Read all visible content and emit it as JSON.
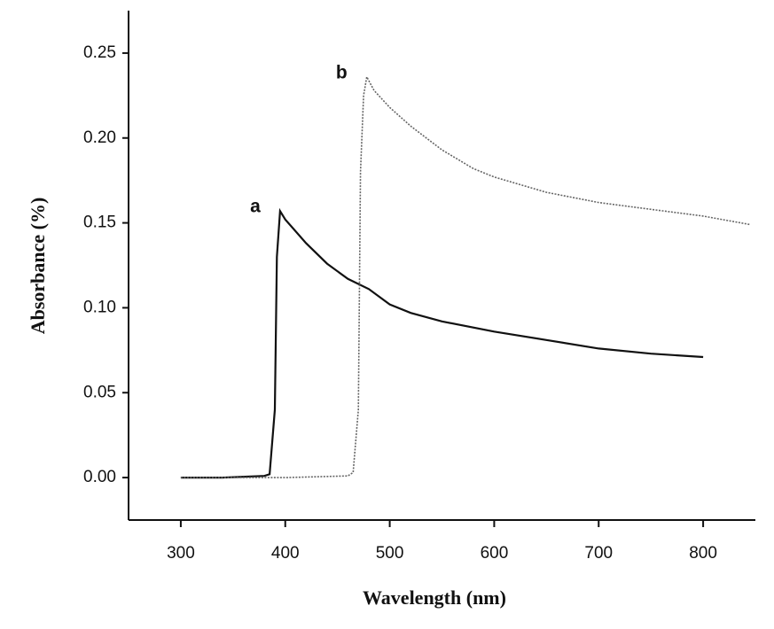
{
  "chart_data": {
    "type": "line",
    "x_label": "Wavelength (nm)",
    "y_label": "Absorbance (%)",
    "xlim": [
      250,
      850
    ],
    "ylim": [
      -0.025,
      0.275
    ],
    "xticks": [
      300,
      400,
      500,
      600,
      700,
      800
    ],
    "yticks": [
      {
        "value": 0,
        "label": "0.00"
      },
      0.05,
      {
        "value": 0.1,
        "label": "0.10"
      },
      0.15,
      {
        "value": 0.2,
        "label": "0.20"
      },
      0.25
    ],
    "series": [
      {
        "name": "a",
        "color": "#111111",
        "style": "solid",
        "x": [
          300,
          340,
          380,
          385,
          390,
          392,
          395,
          400,
          420,
          440,
          460,
          480,
          500,
          520,
          550,
          600,
          650,
          700,
          750,
          800
        ],
        "values": [
          0.0,
          0.0,
          0.001,
          0.002,
          0.04,
          0.13,
          0.157,
          0.152,
          0.138,
          0.126,
          0.117,
          0.111,
          0.102,
          0.097,
          0.092,
          0.086,
          0.081,
          0.076,
          0.073,
          0.071
        ]
      },
      {
        "name": "b",
        "color": "#666666",
        "style": "dotted",
        "x": [
          300,
          400,
          460,
          465,
          470,
          472,
          475,
          478,
          485,
          500,
          520,
          550,
          580,
          600,
          650,
          700,
          750,
          800,
          845
        ],
        "values": [
          0.0,
          0.0,
          0.001,
          0.003,
          0.04,
          0.18,
          0.225,
          0.236,
          0.228,
          0.218,
          0.207,
          0.193,
          0.182,
          0.177,
          0.168,
          0.162,
          0.158,
          0.154,
          0.149
        ]
      }
    ]
  }
}
